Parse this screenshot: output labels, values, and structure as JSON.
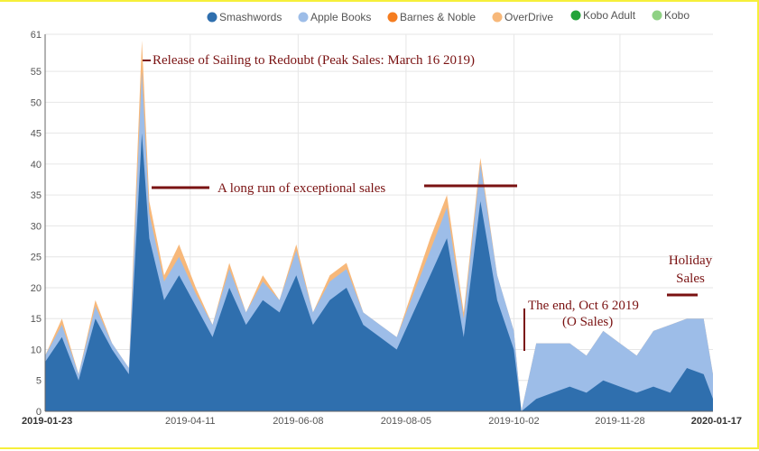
{
  "colors": {
    "smashwords": "#2f6fae",
    "apple_books": "#9dbde8",
    "barnes_noble": "#f57d20",
    "overdrive": "#f7b87a",
    "kobo_adult": "#23a33a",
    "kobo": "#8fd184",
    "annotation": "#7a1212"
  },
  "chart_data": {
    "type": "area",
    "title": "",
    "xlabel": "",
    "ylabel": "",
    "ylim": [
      0,
      61
    ],
    "xlim": [
      "2019-01-23",
      "2020-01-17"
    ],
    "y_ticks": [
      "0",
      "5",
      "10",
      "15",
      "20",
      "25",
      "30",
      "35",
      "40",
      "45",
      "50",
      "55",
      "61"
    ],
    "x_ticks": [
      "2019-01-23",
      "2019-04-11",
      "2019-06-08",
      "2019-08-05",
      "2019-10-02",
      "2019-11-28",
      "2020-01-17"
    ],
    "legend_position": "top-right",
    "legend": [
      "Smashwords",
      "Apple Books",
      "Barnes & Noble",
      "OverDrive",
      "Kobo Adult",
      "Kobo"
    ],
    "series": [
      {
        "name": "Smashwords",
        "x": [
          "2019-01-23",
          "2019-02-01",
          "2019-02-10",
          "2019-02-19",
          "2019-02-28",
          "2019-03-09",
          "2019-03-16",
          "2019-03-20",
          "2019-03-28",
          "2019-04-05",
          "2019-04-14",
          "2019-04-23",
          "2019-05-02",
          "2019-05-11",
          "2019-05-20",
          "2019-05-29",
          "2019-06-07",
          "2019-06-16",
          "2019-06-25",
          "2019-07-04",
          "2019-07-13",
          "2019-07-22",
          "2019-07-31",
          "2019-08-09",
          "2019-08-18",
          "2019-08-27",
          "2019-09-05",
          "2019-09-14",
          "2019-09-23",
          "2019-10-02",
          "2019-10-06",
          "2019-10-14",
          "2019-10-23",
          "2019-11-01",
          "2019-11-10",
          "2019-11-19",
          "2019-11-28",
          "2019-12-07",
          "2019-12-16",
          "2019-12-25",
          "2020-01-03",
          "2020-01-12",
          "2020-01-17"
        ],
        "values": [
          8,
          12,
          5,
          15,
          10,
          6,
          45,
          28,
          18,
          22,
          17,
          12,
          20,
          14,
          18,
          16,
          22,
          14,
          18,
          20,
          14,
          12,
          10,
          16,
          22,
          28,
          12,
          34,
          18,
          10,
          0,
          2,
          3,
          4,
          3,
          5,
          4,
          3,
          4,
          3,
          7,
          6,
          2
        ]
      },
      {
        "name": "Apple Books",
        "x": [
          "2019-01-23",
          "2019-02-01",
          "2019-02-10",
          "2019-02-19",
          "2019-02-28",
          "2019-03-09",
          "2019-03-16",
          "2019-03-20",
          "2019-03-28",
          "2019-04-05",
          "2019-04-14",
          "2019-04-23",
          "2019-05-02",
          "2019-05-11",
          "2019-05-20",
          "2019-05-29",
          "2019-06-07",
          "2019-06-16",
          "2019-06-25",
          "2019-07-04",
          "2019-07-13",
          "2019-07-22",
          "2019-07-31",
          "2019-08-09",
          "2019-08-18",
          "2019-08-27",
          "2019-09-05",
          "2019-09-14",
          "2019-09-23",
          "2019-10-02",
          "2019-10-06",
          "2019-10-14",
          "2019-10-23",
          "2019-11-01",
          "2019-11-10",
          "2019-11-19",
          "2019-11-28",
          "2019-12-07",
          "2019-12-16",
          "2019-12-25",
          "2020-01-03",
          "2020-01-12",
          "2020-01-17"
        ],
        "values": [
          1,
          2,
          1,
          2,
          1,
          1,
          10,
          4,
          3,
          3,
          2,
          2,
          3,
          2,
          3,
          2,
          4,
          2,
          3,
          3,
          2,
          2,
          2,
          3,
          4,
          5,
          3,
          6,
          4,
          3,
          0,
          9,
          8,
          7,
          6,
          8,
          7,
          6,
          9,
          11,
          8,
          9,
          4
        ]
      },
      {
        "name": "OverDrive",
        "x": [
          "2019-01-23",
          "2019-02-01",
          "2019-02-10",
          "2019-02-19",
          "2019-02-28",
          "2019-03-09",
          "2019-03-16",
          "2019-03-20",
          "2019-03-28",
          "2019-04-05",
          "2019-04-14",
          "2019-04-23",
          "2019-05-02",
          "2019-05-11",
          "2019-05-20",
          "2019-05-29",
          "2019-06-07",
          "2019-06-16",
          "2019-06-25",
          "2019-07-04",
          "2019-07-13",
          "2019-07-22",
          "2019-07-31",
          "2019-08-09",
          "2019-08-18",
          "2019-08-27",
          "2019-09-05",
          "2019-09-14",
          "2019-09-23",
          "2019-10-02",
          "2019-10-06",
          "2019-10-14",
          "2019-10-23",
          "2019-11-01",
          "2019-11-10",
          "2019-11-19",
          "2019-11-28",
          "2019-12-07",
          "2019-12-16",
          "2019-12-25",
          "2020-01-03",
          "2020-01-12",
          "2020-01-17"
        ],
        "values": [
          0,
          1,
          0,
          1,
          0,
          0,
          5,
          2,
          1,
          2,
          1,
          0,
          1,
          0,
          1,
          0,
          1,
          0,
          1,
          1,
          0,
          0,
          0,
          1,
          2,
          2,
          1,
          1,
          0,
          0,
          0,
          0,
          0,
          0,
          0,
          0,
          0,
          0,
          0,
          0,
          0,
          0,
          0
        ]
      },
      {
        "name": "Barnes & Noble",
        "x": [
          "2019-01-23",
          "2019-03-16",
          "2019-06-08",
          "2019-10-02",
          "2020-01-17"
        ],
        "values": [
          0,
          0,
          0,
          0,
          0
        ]
      },
      {
        "name": "Kobo Adult",
        "x": [
          "2019-01-23",
          "2019-03-16",
          "2019-06-08",
          "2019-10-02",
          "2020-01-17"
        ],
        "values": [
          0,
          0,
          0,
          0,
          0
        ]
      },
      {
        "name": "Kobo",
        "x": [
          "2019-01-23",
          "2019-03-16",
          "2019-06-08",
          "2019-10-02",
          "2020-01-17"
        ],
        "values": [
          0,
          0,
          0,
          0,
          0
        ]
      }
    ],
    "annotations": [
      {
        "text": "Release of  Sailing to Redoubt  (Peak Sales: March 16 2019)"
      },
      {
        "text": "A long run of exceptional sales"
      },
      {
        "text": "The end, Oct 6 2019"
      },
      {
        "text": "(O Sales)"
      },
      {
        "text": "Holiday"
      },
      {
        "text": "Sales"
      }
    ]
  }
}
